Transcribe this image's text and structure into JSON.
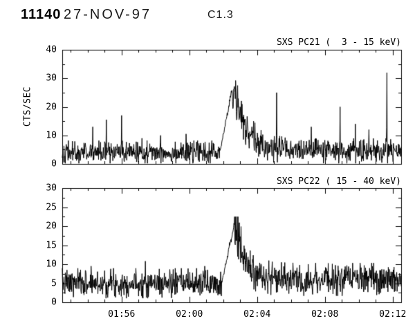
{
  "header": {
    "event_id": "11140",
    "date": "27-NOV-97",
    "flare_class": "C1.3"
  },
  "colors": {
    "background": "#ffffff",
    "line": "#000000",
    "text": "#000000"
  },
  "chart_data": [
    {
      "type": "line",
      "title": "SXS PC21 (  3 - 15 keV)",
      "ylabel": "CTS/SEC",
      "ylim": [
        0,
        40
      ],
      "yticks": [
        0,
        10,
        20,
        30,
        40
      ],
      "xlim_minutes": [
        112.5,
        132.5
      ],
      "xticks": [
        {
          "value": 116,
          "label": "01:56"
        },
        {
          "value": 120,
          "label": "02:00"
        },
        {
          "value": 124,
          "label": "02:04"
        },
        {
          "value": 128,
          "label": "02:08"
        },
        {
          "value": 132,
          "label": "02:12"
        }
      ],
      "show_xlabels": false,
      "grid": false,
      "legend": false,
      "series_model": {
        "n": 1000,
        "seed": 42,
        "baseline": 4.0,
        "post_baseline": 4.5,
        "noise_coeff": 0.95,
        "vmax": 31,
        "flare": {
          "rise_start": 121.8,
          "peak_time": 122.55,
          "peak": 27,
          "decay_tau": 0.75
        },
        "spikes": [
          [
            114.3,
            13
          ],
          [
            115.1,
            15.5
          ],
          [
            116.0,
            17
          ],
          [
            117.2,
            9
          ],
          [
            118.3,
            10
          ],
          [
            119.8,
            10.5
          ],
          [
            125.15,
            25
          ],
          [
            127.2,
            13
          ],
          [
            128.9,
            20
          ],
          [
            129.8,
            14
          ],
          [
            130.6,
            12
          ],
          [
            131.65,
            32
          ]
        ]
      }
    },
    {
      "type": "line",
      "title": "SXS PC22 ( 15 - 40 keV)",
      "ylabel": "",
      "ylim": [
        0,
        30
      ],
      "yticks": [
        0,
        5,
        10,
        15,
        20,
        25,
        30
      ],
      "xlim_minutes": [
        112.5,
        132.5
      ],
      "xticks": [
        {
          "value": 116,
          "label": "01:56"
        },
        {
          "value": 120,
          "label": "02:00"
        },
        {
          "value": 124,
          "label": "02:04"
        },
        {
          "value": 128,
          "label": "02:08"
        },
        {
          "value": 132,
          "label": "02:12"
        }
      ],
      "show_xlabels": true,
      "grid": false,
      "legend": false,
      "series_model": {
        "n": 1000,
        "seed": 7,
        "baseline": 5.0,
        "post_baseline": 6.0,
        "noise_coeff": 0.8,
        "vmax": 22.5,
        "flare": {
          "rise_start": 121.9,
          "peak_time": 122.65,
          "peak": 20.5,
          "decay_tau": 0.6
        },
        "spikes": [
          [
            114.2,
            9.5
          ],
          [
            117.4,
            10.8
          ],
          [
            120.9,
            9.5
          ]
        ]
      }
    }
  ]
}
